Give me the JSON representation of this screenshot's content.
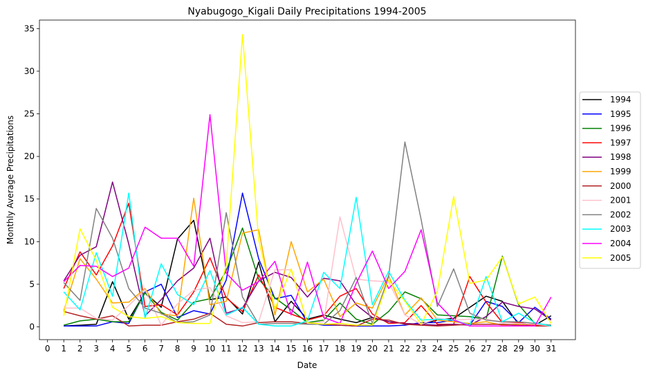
{
  "chart_data": {
    "type": "line",
    "title": "Nyabugogo_Kigali Daily Precipitations 1994-2005",
    "xlabel": "Date",
    "ylabel": "Monthly Average Precipitations",
    "x": [
      1,
      2,
      3,
      4,
      5,
      6,
      7,
      8,
      9,
      10,
      11,
      12,
      13,
      14,
      15,
      16,
      17,
      18,
      19,
      20,
      21,
      22,
      23,
      24,
      25,
      26,
      27,
      28,
      29,
      30,
      31
    ],
    "xticks": [
      "0",
      "1",
      "2",
      "3",
      "4",
      "5",
      "6",
      "7",
      "8",
      "9",
      "10",
      "11",
      "12",
      "13",
      "14",
      "15",
      "16",
      "17",
      "18",
      "19",
      "20",
      "21",
      "22",
      "23",
      "24",
      "25",
      "26",
      "27",
      "28",
      "29",
      "30",
      "31"
    ],
    "yticks": [
      "0",
      "5",
      "10",
      "15",
      "20",
      "25",
      "30",
      "35"
    ],
    "xlim": [
      -0.5,
      32.5
    ],
    "ylim": [
      -1.5,
      36
    ],
    "grid": false,
    "legend_position": "right",
    "series": [
      {
        "name": "1994",
        "color": "#000000",
        "values": [
          0.1,
          0.2,
          0.3,
          5.3,
          0.9,
          4.0,
          2.3,
          10.3,
          12.5,
          3.2,
          3.5,
          1.5,
          7.6,
          0.6,
          3.0,
          0.9,
          1.4,
          0.9,
          0.5,
          1.1,
          0.6,
          0.4,
          0.3,
          0.8,
          1.0,
          2.3,
          3.6,
          3.0,
          0.3,
          0.2,
          1.3
        ]
      },
      {
        "name": "1995",
        "color": "#0000ff",
        "values": [
          0.1,
          0.1,
          0.1,
          0.6,
          0.4,
          4.1,
          5.0,
          1.1,
          1.9,
          1.5,
          5.5,
          15.7,
          8.0,
          3.3,
          3.7,
          0.5,
          0.2,
          0.2,
          0.1,
          0.1,
          0.1,
          0.2,
          0.5,
          0.5,
          0.8,
          0.2,
          3.0,
          2.4,
          0.5,
          2.3,
          0.9
        ]
      },
      {
        "name": "1996",
        "color": "#008000",
        "values": [
          0.2,
          0.7,
          0.9,
          0.6,
          0.6,
          4.0,
          1.7,
          0.8,
          2.9,
          3.3,
          6.6,
          11.6,
          5.6,
          3.4,
          2.0,
          0.5,
          0.8,
          2.8,
          0.9,
          0.3,
          1.8,
          4.1,
          3.3,
          1.4,
          1.3,
          1.2,
          0.9,
          8.3,
          2.6,
          0.4,
          0.2
        ]
      },
      {
        "name": "1997",
        "color": "#ff0000",
        "values": [
          4.5,
          8.8,
          6.1,
          9.5,
          14.5,
          2.4,
          2.6,
          1.4,
          4.1,
          8.1,
          3.4,
          1.8,
          6.1,
          2.3,
          1.5,
          0.8,
          1.3,
          3.6,
          4.5,
          1.5,
          0.4,
          0.5,
          2.5,
          0.3,
          0.3,
          5.9,
          2.9,
          0.5,
          0.5,
          0.2,
          0.2
        ]
      },
      {
        "name": "1998",
        "color": "#800080",
        "values": [
          5.4,
          8.4,
          9.4,
          17.0,
          9.7,
          1.3,
          3.2,
          5.4,
          6.9,
          10.4,
          1.6,
          2.2,
          5.4,
          6.4,
          5.8,
          3.5,
          5.7,
          5.4,
          2.6,
          1.1,
          0.6,
          0.4,
          0.3,
          0.2,
          0.3,
          0.2,
          1.2,
          2.9,
          2.4,
          2.1,
          0.8
        ]
      },
      {
        "name": "1999",
        "color": "#ffa500",
        "values": [
          1.9,
          8.0,
          5.6,
          2.8,
          2.9,
          4.5,
          1.5,
          1.3,
          15.1,
          2.6,
          3.0,
          11.0,
          11.4,
          1.4,
          10.0,
          4.1,
          5.6,
          1.2,
          2.8,
          2.2,
          6.0,
          1.4,
          3.4,
          0.8,
          0.6,
          0.4,
          0.6,
          0.2,
          0.3,
          0.1,
          0.1
        ]
      },
      {
        "name": "2000",
        "color": "#b22222",
        "values": [
          1.8,
          1.3,
          0.9,
          1.3,
          0.1,
          0.2,
          0.2,
          0.6,
          0.9,
          1.6,
          0.3,
          0.1,
          0.5,
          0.6,
          0.6,
          0.4,
          0.3,
          0.2,
          0.1,
          0.9,
          0.8,
          0.3,
          0.2,
          0.1,
          0.2,
          0.3,
          0.3,
          0.3,
          0.2,
          0.1,
          0.1
        ]
      },
      {
        "name": "2001",
        "color": "#ffc0cb",
        "values": [
          2.2,
          2.2,
          1.0,
          0.8,
          2.5,
          4.4,
          0.2,
          2.7,
          4.3,
          4.6,
          1.3,
          0.5,
          0.6,
          6.7,
          6.7,
          0.4,
          0.6,
          12.9,
          5.6,
          5.4,
          5.3,
          1.4,
          0.3,
          1.0,
          0.8,
          0.9,
          0.9,
          0.5,
          0.4,
          0.3,
          0.1
        ]
      },
      {
        "name": "2002",
        "color": "#808080",
        "values": [
          5.2,
          3.1,
          13.9,
          10.4,
          4.5,
          2.2,
          1.6,
          0.5,
          0.6,
          1.4,
          13.4,
          3.5,
          0.3,
          0.4,
          0.4,
          0.3,
          0.3,
          1.9,
          5.8,
          0.4,
          5.9,
          21.7,
          12.6,
          2.4,
          6.8,
          1.6,
          0.8,
          0.6,
          0.6,
          0.4,
          0.2
        ]
      },
      {
        "name": "2003",
        "color": "#00ffff",
        "values": [
          4.1,
          2.0,
          8.7,
          3.6,
          15.7,
          1.0,
          7.4,
          3.8,
          2.6,
          6.6,
          1.4,
          2.3,
          0.3,
          0.1,
          0.1,
          0.7,
          6.4,
          4.5,
          15.2,
          2.6,
          6.5,
          3.1,
          0.8,
          0.9,
          0.8,
          0.2,
          5.9,
          0.6,
          1.6,
          0.5,
          0.1
        ]
      },
      {
        "name": "2004",
        "color": "#ff00ff",
        "values": [
          5.3,
          7.2,
          7.1,
          5.9,
          6.9,
          11.7,
          10.4,
          10.4,
          7.1,
          24.9,
          6.3,
          4.3,
          5.3,
          7.7,
          1.4,
          7.6,
          1.1,
          0.4,
          5.1,
          8.9,
          4.5,
          6.5,
          11.4,
          2.8,
          0.8,
          0.1,
          0.1,
          0.1,
          0.1,
          0.1,
          3.5
        ]
      },
      {
        "name": "2005",
        "color": "#ffff00",
        "values": [
          1.3,
          11.5,
          7.8,
          2.3,
          1.2,
          1.0,
          1.2,
          0.5,
          0.4,
          0.4,
          7.2,
          34.3,
          10.2,
          2.1,
          6.8,
          0.5,
          0.3,
          0.4,
          0.2,
          0.2,
          5.5,
          3.0,
          0.3,
          4.2,
          15.3,
          5.1,
          5.5,
          8.2,
          2.7,
          3.5,
          0.4
        ]
      }
    ]
  }
}
